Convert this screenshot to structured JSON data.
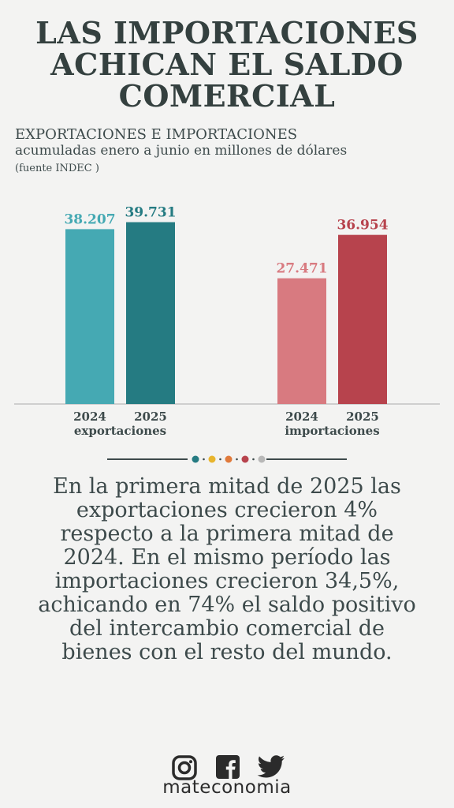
{
  "title_lines": [
    "LAS IMPORTACIONES",
    "ACHICAN EL SALDO",
    "COMERCIAL"
  ],
  "subtitle": "EXPORTACIONES E IMPORTACIONES",
  "subtitle2": "acumuladas enero a junio en millones de dólares",
  "source": "(fuente INDEC )",
  "chart_data": {
    "type": "bar",
    "title": "EXPORTACIONES E IMPORTACIONES",
    "subtitle": "acumuladas enero a junio en millones de dólares",
    "ylim": [
      0,
      40000
    ],
    "grid": false,
    "groups": [
      {
        "name": "exportaciones",
        "bars": [
          {
            "year": "2024",
            "value": 38207,
            "label": "38.207",
            "color": "#45a9b3",
            "label_color": "#45a9b3"
          },
          {
            "year": "2025",
            "value": 39731,
            "label": "39.731",
            "color": "#257b82",
            "label_color": "#257b82"
          }
        ]
      },
      {
        "name": "importaciones",
        "bars": [
          {
            "year": "2024",
            "value": 27471,
            "label": "27.471",
            "color": "#d87a80",
            "label_color": "#d87a80"
          },
          {
            "year": "2025",
            "value": 36954,
            "label": "36.954",
            "color": "#b7434d",
            "label_color": "#b7434d"
          }
        ]
      }
    ]
  },
  "divider_dots": [
    "#257b82",
    "#e8b52e",
    "#e07a3c",
    "#b7434d",
    "#b8b8b8"
  ],
  "body_lines": [
    "En la primera mitad de 2025 las",
    "exportaciones crecieron 4%",
    "respecto a la primera mitad de",
    "2024. En el mismo período las",
    "importaciones crecieron 34,5%,",
    "achicando en 74% el saldo positivo",
    "del intercambio comercial de",
    "bienes con el resto del mundo."
  ],
  "footer": {
    "icons": [
      "instagram-icon",
      "facebook-icon",
      "twitter-icon"
    ],
    "brand": "mateconomia"
  }
}
